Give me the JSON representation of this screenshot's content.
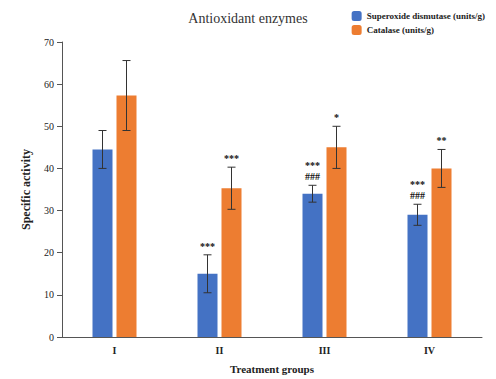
{
  "chart_data": {
    "type": "bar",
    "title": "Antioxidant enzymes",
    "x_label": "Treatment groups",
    "y_label": "Specific activity",
    "categories": [
      "I",
      "II",
      "III",
      "IV"
    ],
    "series": [
      {
        "name": "Superoxide dismutase (units/g)",
        "color": "#4472c4",
        "values": [
          44.5,
          15,
          34,
          29
        ],
        "errors": [
          4.5,
          4.5,
          2,
          2.5
        ],
        "annotations": [
          [],
          [
            "***"
          ],
          [
            "***",
            "###"
          ],
          [
            "***",
            "###"
          ]
        ]
      },
      {
        "name": "Catalase (units/g)",
        "color": "#ed7d31",
        "values": [
          57.3,
          35.3,
          45,
          40
        ],
        "errors": [
          8.3,
          5,
          5,
          4.5
        ],
        "annotations": [
          [],
          [
            "***"
          ],
          [
            "*"
          ],
          [
            "**"
          ]
        ]
      }
    ],
    "ylim": [
      0,
      70
    ],
    "yticks": [
      0,
      10,
      20,
      30,
      40,
      50,
      60,
      70
    ],
    "grid": false,
    "legend": "top-right"
  }
}
